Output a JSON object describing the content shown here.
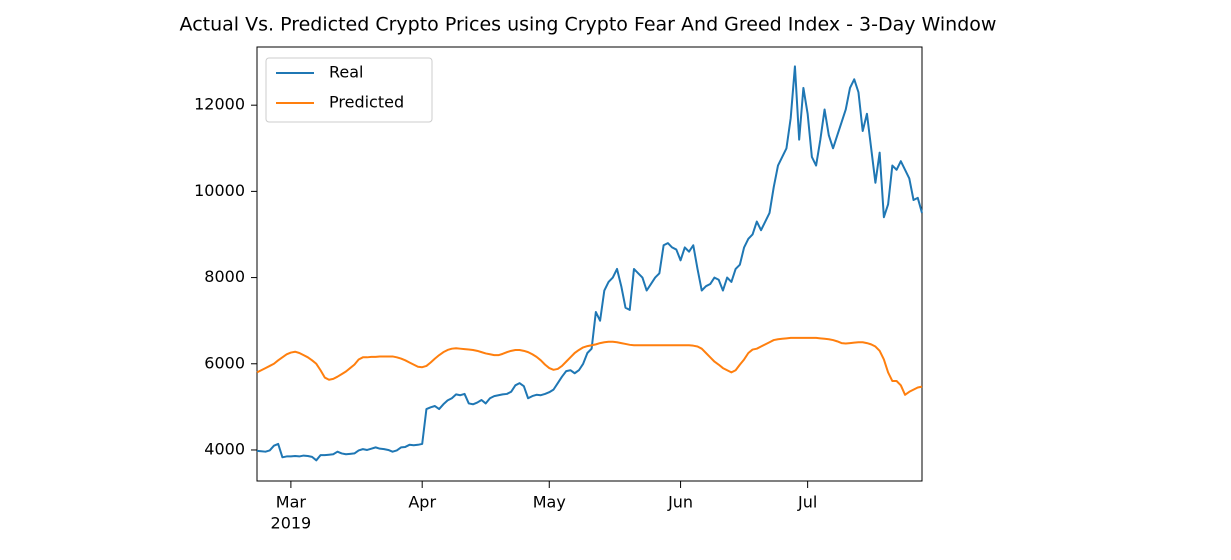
{
  "chart_data": {
    "type": "line",
    "title": "Actual Vs. Predicted Crypto Prices using Crypto Fear And Greed Index - 3-Day Window",
    "categories": [
      null,
      null,
      null,
      null,
      null,
      null,
      null,
      null,
      null,
      null,
      null,
      null,
      null,
      null,
      null,
      null,
      null,
      null,
      null,
      null,
      null,
      null,
      null,
      null,
      null,
      null,
      null,
      null,
      null,
      null,
      null,
      null,
      null,
      null,
      null,
      null,
      null,
      null,
      null,
      null,
      null,
      null,
      null,
      null,
      null,
      null,
      null,
      null,
      null,
      null,
      null,
      null,
      null,
      null,
      null,
      null,
      null,
      null,
      null,
      null,
      null,
      null,
      null,
      null,
      null,
      null,
      null,
      null,
      null,
      null,
      null,
      null,
      null,
      null,
      null,
      null,
      null,
      null,
      null,
      null,
      null,
      null,
      null,
      null,
      null,
      null,
      null,
      null,
      null,
      null,
      null,
      null,
      null,
      null,
      null,
      null,
      null,
      null,
      null,
      null,
      null,
      null,
      null,
      null,
      null,
      null,
      null,
      null,
      null,
      null,
      null,
      null,
      null,
      null,
      null,
      null,
      null,
      null,
      null,
      null,
      null,
      null,
      null,
      null,
      null,
      null,
      null,
      null,
      null,
      null,
      null,
      null,
      null,
      null,
      null,
      null,
      null,
      null,
      null,
      null,
      null,
      null,
      null,
      null,
      null,
      null,
      null,
      null,
      null,
      null,
      null,
      null,
      null,
      null,
      null,
      null,
      null,
      null
    ],
    "xlim": [
      0,
      157
    ],
    "xticks": [
      {
        "value": 8,
        "label": "Mar"
      },
      {
        "value": 39,
        "label": "Apr"
      },
      {
        "value": 69,
        "label": "May"
      },
      {
        "value": 100,
        "label": "Jun"
      },
      {
        "value": 130,
        "label": "Jul"
      }
    ],
    "x_year_label": "2019",
    "ylim": [
      3280,
      13350
    ],
    "yticks": [
      4000,
      6000,
      8000,
      10000,
      12000
    ],
    "grid": false,
    "legend": "upper left",
    "series": [
      {
        "name": "Real",
        "color": "#1f77b4",
        "values": [
          3980,
          3970,
          3960,
          3990,
          4100,
          4140,
          3830,
          3850,
          3850,
          3860,
          3850,
          3870,
          3860,
          3840,
          3760,
          3880,
          3880,
          3890,
          3900,
          3960,
          3920,
          3900,
          3910,
          3920,
          3990,
          4020,
          4000,
          4030,
          4060,
          4030,
          4020,
          4000,
          3960,
          3990,
          4060,
          4070,
          4120,
          4110,
          4120,
          4140,
          4950,
          4990,
          5020,
          4950,
          5060,
          5150,
          5200,
          5290,
          5270,
          5300,
          5080,
          5060,
          5100,
          5160,
          5080,
          5200,
          5250,
          5270,
          5290,
          5300,
          5350,
          5500,
          5550,
          5480,
          5200,
          5250,
          5280,
          5270,
          5300,
          5340,
          5400,
          5550,
          5700,
          5830,
          5850,
          5780,
          5850,
          6000,
          6250,
          6350,
          7200,
          7000,
          7700,
          7900,
          8000,
          8200,
          7800,
          7300,
          7250,
          8200,
          8100,
          8000,
          7700,
          7850,
          8000,
          8100,
          8750,
          8800,
          8700,
          8650,
          8400,
          8700,
          8600,
          8750,
          8200,
          7700,
          7800,
          7850,
          8000,
          7950,
          7700,
          8000,
          7900,
          8200,
          8300,
          8700,
          8900,
          9000,
          9300,
          9100,
          9300,
          9500,
          10100,
          10600,
          10800,
          11000,
          11700,
          12900,
          11200,
          12400,
          11800,
          10800,
          10600,
          11200,
          11900,
          11300,
          11000,
          11300,
          11600,
          11900,
          12400,
          12600,
          12300,
          11400,
          11800,
          11000,
          10200,
          10900,
          9400,
          9700,
          10600,
          10500,
          10700,
          10500,
          10300,
          9800,
          9850,
          9500
        ]
      },
      {
        "name": "Predicted",
        "color": "#ff7f0e",
        "values": [
          5800,
          5850,
          5900,
          5950,
          6000,
          6080,
          6150,
          6220,
          6260,
          6280,
          6250,
          6200,
          6150,
          6080,
          6000,
          5850,
          5680,
          5630,
          5650,
          5700,
          5760,
          5820,
          5900,
          5980,
          6100,
          6150,
          6150,
          6160,
          6160,
          6170,
          6170,
          6170,
          6170,
          6150,
          6120,
          6080,
          6030,
          5980,
          5930,
          5920,
          5950,
          6030,
          6120,
          6200,
          6270,
          6320,
          6350,
          6360,
          6350,
          6340,
          6330,
          6320,
          6300,
          6270,
          6240,
          6220,
          6200,
          6200,
          6230,
          6270,
          6300,
          6320,
          6320,
          6300,
          6270,
          6220,
          6160,
          6080,
          5980,
          5900,
          5860,
          5880,
          5950,
          6050,
          6150,
          6250,
          6320,
          6380,
          6410,
          6430,
          6450,
          6480,
          6500,
          6510,
          6510,
          6500,
          6480,
          6460,
          6440,
          6430,
          6430,
          6430,
          6430,
          6430,
          6430,
          6430,
          6430,
          6430,
          6430,
          6430,
          6430,
          6430,
          6430,
          6420,
          6400,
          6350,
          6250,
          6150,
          6050,
          5980,
          5900,
          5850,
          5800,
          5850,
          5980,
          6100,
          6250,
          6330,
          6350,
          6400,
          6450,
          6500,
          6550,
          6570,
          6580,
          6590,
          6600,
          6600,
          6600,
          6600,
          6600,
          6600,
          6600,
          6590,
          6580,
          6570,
          6550,
          6520,
          6480,
          6470,
          6480,
          6490,
          6500,
          6500,
          6480,
          6450,
          6400,
          6300,
          6100,
          5800,
          5600,
          5600,
          5500,
          5280,
          5350,
          5400,
          5450,
          5470
        ]
      }
    ]
  }
}
